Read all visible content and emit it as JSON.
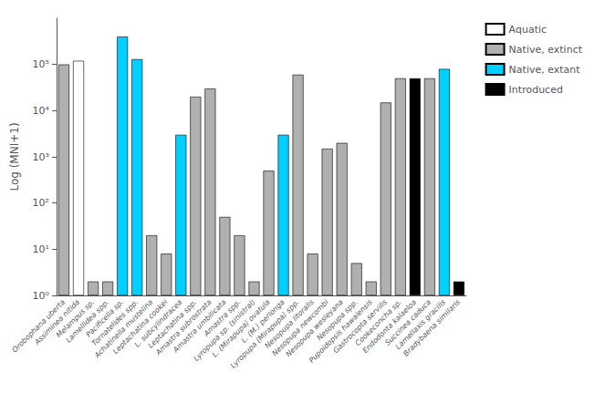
{
  "chart_data": {
    "type": "bar",
    "categories": [
      "Orobophana uberta",
      "Assiminea nitida",
      "Melampus sp.",
      "Lamellidea spp.",
      "Pacificella sp.",
      "Tornatelides spp.",
      "Achatinella mustelina",
      "Leptachatina cookei",
      "L. subcylindracea",
      "Leptachatina spp.",
      "Amastra subrostrata",
      "Amastra umbilicata",
      "Amastra spp.",
      "Lyropupa sp. (sinistral)",
      "L. (Mirapupa) ovatula",
      "L. (M.) perlonga",
      "Lyropupa (Mirapupa) spp.",
      "Nesopupa litoralis",
      "Nesopupa newcombi",
      "Nesopupa wesleyana",
      "Nesopupa spp.",
      "Pupoidopsis hawaiensis",
      "Gastrocopta servilis",
      "Cookeconcha sp.",
      "Endodonta kalaeloa",
      "Succinea caduca",
      "Lamellaxis gracilis",
      "Bradybaena similaris"
    ],
    "series": [
      {
        "name": "Aquatic",
        "color": "#ffffff",
        "values": [
          null,
          120000,
          null,
          null,
          null,
          null,
          null,
          null,
          null,
          null,
          null,
          null,
          null,
          null,
          null,
          null,
          null,
          null,
          null,
          null,
          null,
          null,
          null,
          null,
          null,
          null,
          null,
          null
        ]
      },
      {
        "name": "Native, extinct",
        "color": "#b0b0b0",
        "values": [
          100000,
          null,
          2,
          2,
          null,
          null,
          20,
          8,
          null,
          20000,
          30000,
          50,
          20,
          2,
          500,
          null,
          60000,
          8,
          1500,
          2000,
          5,
          2,
          15000,
          50000,
          null,
          50000,
          null,
          null
        ]
      },
      {
        "name": "Native, extant",
        "color": "#00d0ff",
        "values": [
          null,
          null,
          null,
          null,
          400000,
          130000,
          null,
          null,
          3000,
          null,
          null,
          null,
          null,
          null,
          null,
          3000,
          null,
          null,
          null,
          null,
          null,
          null,
          null,
          null,
          null,
          null,
          80000,
          null
        ]
      },
      {
        "name": "Introduced",
        "color": "#000000",
        "values": [
          null,
          null,
          null,
          null,
          null,
          null,
          null,
          null,
          null,
          null,
          null,
          null,
          null,
          null,
          null,
          null,
          null,
          null,
          null,
          null,
          null,
          null,
          null,
          null,
          50000,
          null,
          null,
          2
        ]
      }
    ],
    "ylabel": "Log (MNI+1)",
    "log": "y",
    "ylim": [
      1,
      1000000
    ],
    "yticks": [
      {
        "value": 1,
        "label": "10⁰"
      },
      {
        "value": 10,
        "label": "10¹"
      },
      {
        "value": 100,
        "label": "10²"
      },
      {
        "value": 1000,
        "label": "10³"
      },
      {
        "value": 10000,
        "label": "10⁴"
      },
      {
        "value": 100000,
        "label": "10⁵"
      }
    ],
    "grid": false,
    "legend": "right"
  }
}
